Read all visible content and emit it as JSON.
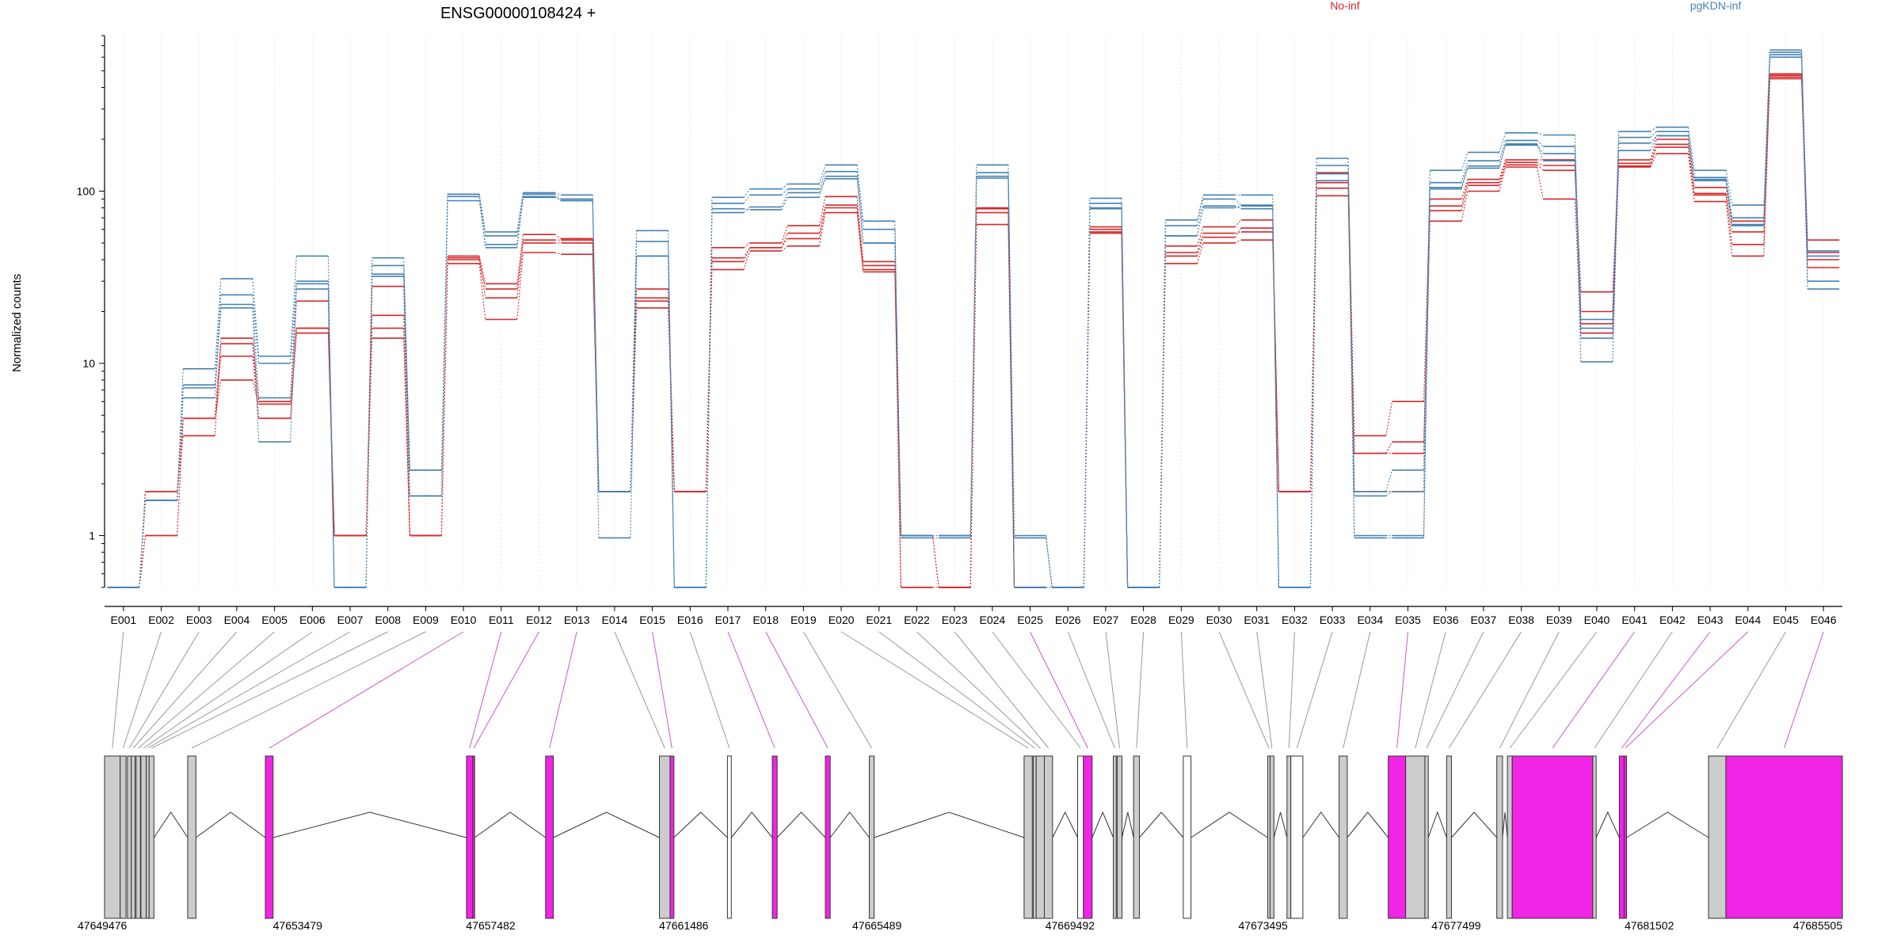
{
  "chart_data": {
    "type": "line",
    "title": "ENSG00000108424 +",
    "ylabel": "Normalized counts",
    "y_scale": "log",
    "ylim": [
      0.5,
      800
    ],
    "y_ticks": [
      {
        "value": 1,
        "label": "1"
      },
      {
        "value": 10,
        "label": "10"
      },
      {
        "value": 100,
        "label": "100"
      }
    ],
    "grid": "vertical dotted lines at each exon bin",
    "legend_position": "top",
    "categories": [
      "E001",
      "E002",
      "E003",
      "E004",
      "E005",
      "E006",
      "E007",
      "E008",
      "E009",
      "E010",
      "E011",
      "E012",
      "E013",
      "E014",
      "E015",
      "E016",
      "E017",
      "E018",
      "E019",
      "E020",
      "E021",
      "E022",
      "E023",
      "E024",
      "E025",
      "E026",
      "E027",
      "E028",
      "E029",
      "E030",
      "E031",
      "E032",
      "E033",
      "E034",
      "E035",
      "E036",
      "E037",
      "E038",
      "E039",
      "E040",
      "E041",
      "E042",
      "E043",
      "E044",
      "E045",
      "E046"
    ],
    "groups": [
      {
        "name": "No-inf",
        "color": "#d62728",
        "series": [
          [
            0.5,
            1.8,
            4.8,
            14,
            6,
            23,
            1,
            19,
            1,
            42,
            29,
            56,
            53,
            1.8,
            27,
            1.8,
            47,
            50,
            63,
            93,
            39,
            0.5,
            0.5,
            80,
            0.5,
            0.5,
            62,
            0.5,
            48,
            62,
            68,
            1.8,
            128,
            3.8,
            6,
            90,
            117,
            152,
            152,
            26,
            152,
            200,
            105,
            67,
            480,
            52
          ],
          [
            0.5,
            1,
            4.8,
            11,
            4.8,
            16,
            1,
            16,
            1,
            40,
            24,
            50,
            50,
            1.8,
            23,
            1.8,
            41,
            47,
            57,
            83,
            37,
            1,
            0.5,
            75,
            0.5,
            0.5,
            60,
            0.5,
            44,
            57,
            58,
            1.8,
            112,
            3,
            3.5,
            82,
            112,
            147,
            141,
            20,
            145,
            187,
            97,
            58,
            460,
            44
          ],
          [
            0.5,
            1.8,
            3.8,
            13,
            4.8,
            15,
            1,
            14,
            1,
            38,
            18,
            44,
            43,
            1.8,
            21,
            1.8,
            35,
            45,
            48,
            75,
            34,
            0.5,
            0.5,
            64,
            0.5,
            0.5,
            57,
            0.5,
            38,
            50,
            52,
            1.8,
            94,
            1.8,
            1.8,
            67,
            100,
            138,
            90,
            15,
            138,
            165,
            87,
            42,
            450,
            36
          ],
          [
            0.5,
            1,
            4.8,
            8,
            5.8,
            16,
            1,
            28,
            1,
            41,
            27,
            52,
            52,
            1.8,
            24,
            1.8,
            39,
            47,
            53,
            80,
            35,
            1,
            0.5,
            79,
            0.5,
            0.5,
            58,
            0.5,
            42,
            54,
            61,
            1.8,
            104,
            3,
            3,
            77,
            108,
            142,
            132,
            17,
            140,
            180,
            95,
            49,
            470,
            40
          ]
        ]
      },
      {
        "name": "pgKDN-inf",
        "color": "#4682b4",
        "series": [
          [
            0.5,
            1.6,
            9.3,
            31,
            11,
            42,
            0.5,
            41,
            2.4,
            96,
            58,
            98,
            95,
            1.8,
            59,
            0.5,
            92,
            103,
            110,
            142,
            67,
            1,
            1,
            142,
            1,
            0.5,
            91,
            0.5,
            68,
            95,
            95,
            0.5,
            155,
            1.8,
            2.4,
            132,
            168,
            218,
            212,
            18,
            222,
            235,
            132,
            83,
            660,
            45
          ],
          [
            0.5,
            1.6,
            7.5,
            25,
            10,
            30,
            0.5,
            37,
            2.4,
            93,
            55,
            96,
            90,
            1.8,
            51,
            0.5,
            85,
            95,
            103,
            130,
            60,
            1,
            1,
            128,
            0.5,
            0.5,
            85,
            0.5,
            63,
            90,
            83,
            0.5,
            141,
            1.7,
            1.8,
            112,
            150,
            197,
            182,
            16,
            205,
            222,
            120,
            70,
            640,
            42
          ],
          [
            0.5,
            1.6,
            6.3,
            22,
            6.3,
            27,
            0.5,
            33,
            1.7,
            88,
            49,
            93,
            88,
            1.8,
            42,
            0.5,
            79,
            78,
            92,
            122,
            50,
            1,
            1,
            122,
            0.5,
            0.5,
            79,
            0.5,
            55,
            82,
            79,
            0.5,
            126,
            1,
            1,
            105,
            140,
            185,
            165,
            14,
            190,
            210,
            115,
            63,
            620,
            30
          ],
          [
            0.5,
            1.6,
            7.2,
            21,
            3.5,
            29,
            0.5,
            32,
            1.7,
            96,
            47,
            92,
            88,
            0.97,
            42,
            0.5,
            75,
            81,
            98,
            118,
            50,
            0.97,
            0.97,
            119,
            0.97,
            0.5,
            80,
            0.5,
            55,
            80,
            82,
            0.5,
            115,
            0.97,
            0.97,
            103,
            136,
            188,
            150,
            10.2,
            172,
            210,
            117,
            64,
            600,
            27
          ]
        ]
      }
    ],
    "gene_model": {
      "coordinate_labels": [
        "47649476",
        "47653479",
        "47657482",
        "47661486",
        "47665489",
        "47669492",
        "47673495",
        "47677499",
        "47681502",
        "47685505"
      ],
      "coordinate_range": [
        47649476,
        47685505
      ],
      "exons": [
        {
          "start": 47649476,
          "end": 47649800,
          "style": "gray",
          "bin": "E001"
        },
        {
          "start": 47649800,
          "end": 47649920,
          "style": "gray",
          "bin": "E002"
        },
        {
          "start": 47649950,
          "end": 47650030,
          "style": "gray",
          "bin": "E003"
        },
        {
          "start": 47650030,
          "end": 47650110,
          "style": "gray",
          "bin": "E004"
        },
        {
          "start": 47650130,
          "end": 47650220,
          "style": "gray",
          "bin": "E005"
        },
        {
          "start": 47650230,
          "end": 47650340,
          "style": "gray",
          "bin": "E006"
        },
        {
          "start": 47650340,
          "end": 47650400,
          "style": "gray",
          "bin": "E007"
        },
        {
          "start": 47650400,
          "end": 47650500,
          "style": "gray",
          "bin": "E008"
        },
        {
          "start": 47651200,
          "end": 47651370,
          "style": "gray",
          "bin": "E009"
        },
        {
          "start": 47652810,
          "end": 47652970,
          "style": "magenta",
          "bin": "E010"
        },
        {
          "start": 47656980,
          "end": 47657110,
          "style": "magenta",
          "bin": "E011"
        },
        {
          "start": 47657110,
          "end": 47657150,
          "style": "magenta",
          "bin": "E012"
        },
        {
          "start": 47658620,
          "end": 47658780,
          "style": "magenta",
          "bin": "E013"
        },
        {
          "start": 47660980,
          "end": 47661200,
          "style": "gray",
          "bin": "E014"
        },
        {
          "start": 47661200,
          "end": 47661280,
          "style": "magenta",
          "bin": "E015"
        },
        {
          "start": 47662390,
          "end": 47662470,
          "style": "white",
          "bin": "E016"
        },
        {
          "start": 47663320,
          "end": 47663420,
          "style": "magenta",
          "bin": "E017"
        },
        {
          "start": 47664420,
          "end": 47664520,
          "style": "magenta",
          "bin": "E018"
        },
        {
          "start": 47665330,
          "end": 47665430,
          "style": "gray",
          "bin": "E019"
        },
        {
          "start": 47668540,
          "end": 47668710,
          "style": "gray",
          "bin": "E020"
        },
        {
          "start": 47668730,
          "end": 47668790,
          "style": "gray",
          "bin": "E021"
        },
        {
          "start": 47668790,
          "end": 47668960,
          "style": "gray",
          "bin": "E022"
        },
        {
          "start": 47668960,
          "end": 47669130,
          "style": "gray",
          "bin": "E023"
        },
        {
          "start": 47669650,
          "end": 47669770,
          "style": "white",
          "bin": "E024"
        },
        {
          "start": 47669770,
          "end": 47669950,
          "style": "magenta",
          "bin": "E025"
        },
        {
          "start": 47670390,
          "end": 47670450,
          "style": "gray",
          "bin": "E026"
        },
        {
          "start": 47670470,
          "end": 47670570,
          "style": "gray",
          "bin": "E027"
        },
        {
          "start": 47670810,
          "end": 47670930,
          "style": "gray",
          "bin": "E028"
        },
        {
          "start": 47671840,
          "end": 47672000,
          "style": "white",
          "bin": "E029"
        },
        {
          "start": 47673590,
          "end": 47673640,
          "style": "gray",
          "bin": "E030"
        },
        {
          "start": 47673640,
          "end": 47673720,
          "style": "gray",
          "bin": "E031"
        },
        {
          "start": 47673990,
          "end": 47674070,
          "style": "gray",
          "bin": "E032"
        },
        {
          "start": 47674070,
          "end": 47674320,
          "style": "white",
          "bin": "E033"
        },
        {
          "start": 47675070,
          "end": 47675240,
          "style": "gray",
          "bin": "E034"
        },
        {
          "start": 47676090,
          "end": 47676450,
          "style": "magenta",
          "bin": "E035"
        },
        {
          "start": 47676450,
          "end": 47676850,
          "style": "gray",
          "bin": "E036"
        },
        {
          "start": 47676850,
          "end": 47676920,
          "style": "gray",
          "bin": "E037"
        },
        {
          "start": 47677300,
          "end": 47677400,
          "style": "gray",
          "bin": "E038"
        },
        {
          "start": 47678340,
          "end": 47678460,
          "style": "gray",
          "bin": "E039"
        },
        {
          "start": 47678560,
          "end": 47678660,
          "style": "gray",
          "bin": "E040"
        },
        {
          "start": 47678660,
          "end": 47680330,
          "style": "magenta",
          "bin": "E041"
        },
        {
          "start": 47680330,
          "end": 47680400,
          "style": "gray",
          "bin": "E042"
        },
        {
          "start": 47680880,
          "end": 47680980,
          "style": "magenta",
          "bin": "E043"
        },
        {
          "start": 47680980,
          "end": 47681030,
          "style": "magenta",
          "bin": "E044"
        },
        {
          "start": 47682730,
          "end": 47683090,
          "style": "gray",
          "bin": "E045"
        },
        {
          "start": 47683090,
          "end": 47685505,
          "style": "magenta",
          "bin": "E046"
        }
      ],
      "colors": {
        "gray": "#cccccc",
        "magenta": "#f025e6",
        "white": "#ffffff",
        "intron": "#333333",
        "connector_gray": "#999999",
        "connector_magenta": "#cc55cc"
      }
    }
  }
}
